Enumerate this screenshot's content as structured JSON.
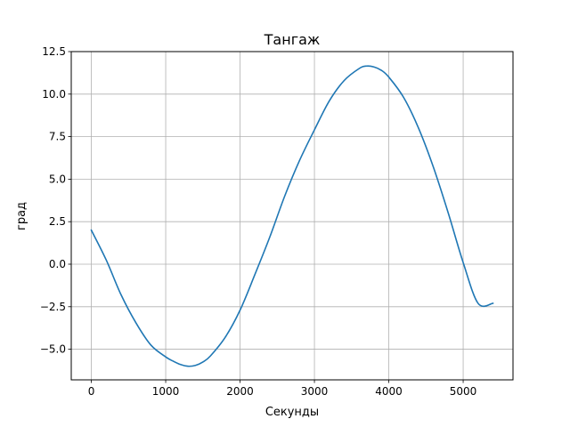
{
  "chart_data": {
    "type": "line",
    "title": "Тангаж",
    "xlabel": "Секунды",
    "ylabel": "град",
    "xlim": [
      -270,
      5670
    ],
    "ylim": [
      -6.8,
      12.5
    ],
    "xticks": [
      {
        "value": 0,
        "label": "0"
      },
      {
        "value": 1000,
        "label": "1000"
      },
      {
        "value": 2000,
        "label": "2000"
      },
      {
        "value": 3000,
        "label": "3000"
      },
      {
        "value": 4000,
        "label": "4000"
      },
      {
        "value": 5000,
        "label": "5000"
      }
    ],
    "yticks": [
      {
        "value": -5.0,
        "label": "−5.0"
      },
      {
        "value": -2.5,
        "label": "−2.5"
      },
      {
        "value": 0.0,
        "label": "0.0"
      },
      {
        "value": 2.5,
        "label": "2.5"
      },
      {
        "value": 5.0,
        "label": "5.0"
      },
      {
        "value": 7.5,
        "label": "7.5"
      },
      {
        "value": 10.0,
        "label": "10.0"
      },
      {
        "value": 12.5,
        "label": "12.5"
      }
    ],
    "grid": true,
    "colors": {
      "line": "#1f77b4",
      "grid": "#b0b0b0",
      "axes": "#000000"
    },
    "series": [
      {
        "x": [
          0,
          200,
          400,
          600,
          800,
          1000,
          1100,
          1200,
          1300,
          1400,
          1500,
          1600,
          1800,
          2000,
          2200,
          2400,
          2600,
          2800,
          3000,
          3200,
          3400,
          3600,
          3700,
          3800,
          3900,
          4000,
          4200,
          4400,
          4600,
          4800,
          5000,
          5200,
          5400
        ],
        "values": [
          2.0,
          0.25,
          -1.8,
          -3.45,
          -4.75,
          -5.45,
          -5.7,
          -5.9,
          -6.0,
          -5.95,
          -5.75,
          -5.4,
          -4.3,
          -2.7,
          -0.6,
          1.6,
          4.0,
          6.1,
          7.9,
          9.6,
          10.8,
          11.5,
          11.65,
          11.6,
          11.4,
          11.0,
          9.8,
          8.0,
          5.7,
          3.0,
          0.1,
          -2.3,
          -2.3
        ]
      }
    ]
  }
}
